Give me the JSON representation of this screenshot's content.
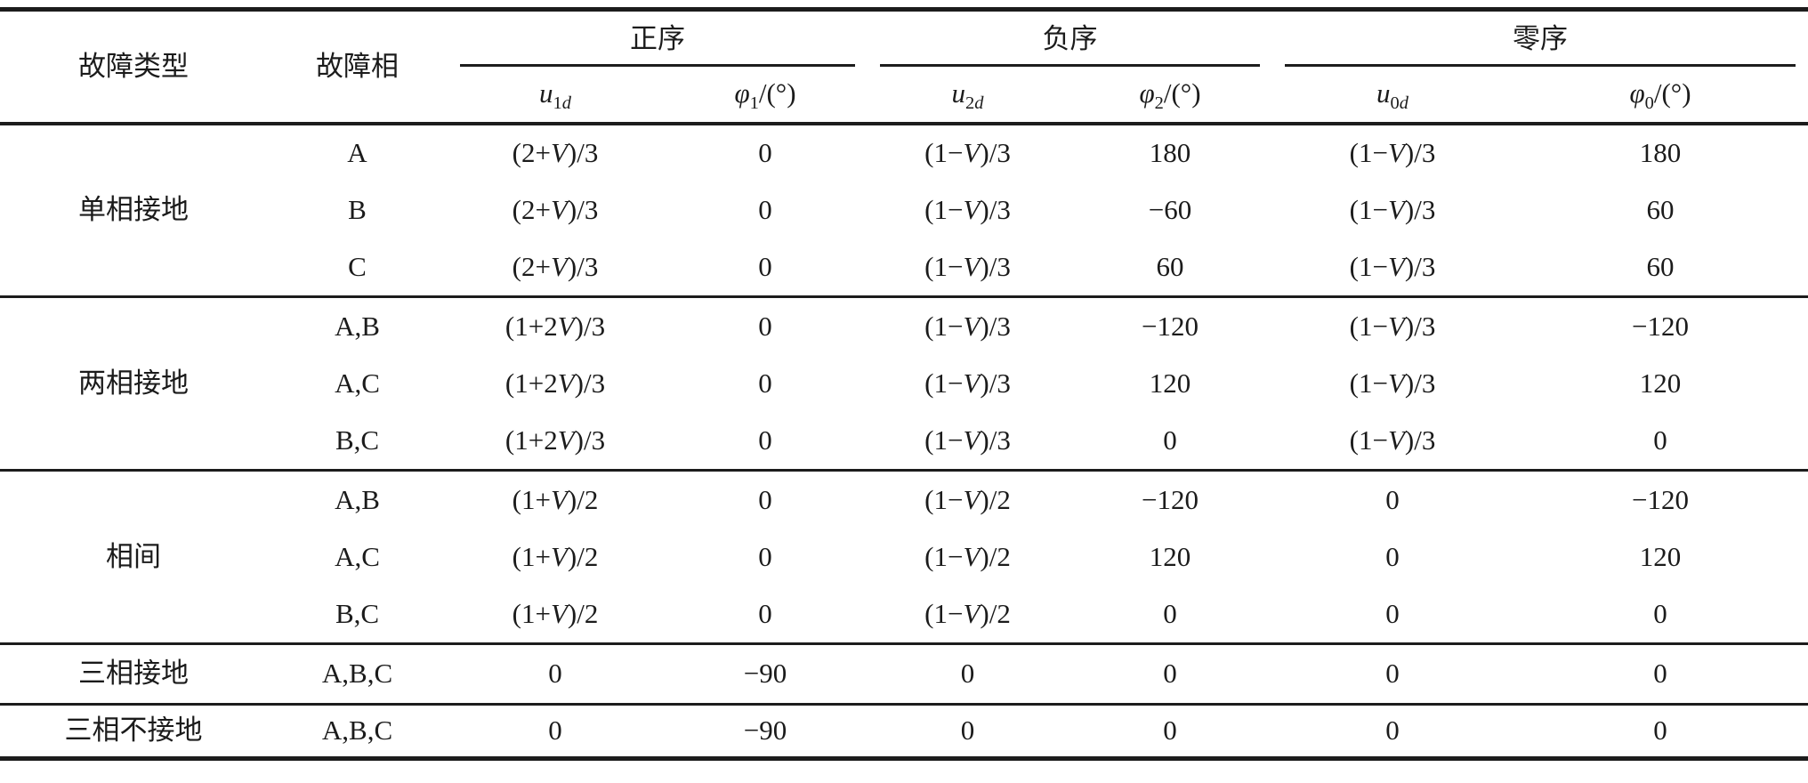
{
  "table": {
    "title_semantics": "故障类型与各序分量表",
    "col_headers": {
      "fault_type": "故障类型",
      "fault_phase": "故障相"
    },
    "seq_groups": [
      {
        "label": "正序",
        "u": {
          "base": "u",
          "sub": "1",
          "subi": "d"
        },
        "phi": {
          "base": "φ",
          "sub": "1",
          "unit": "/(°)"
        }
      },
      {
        "label": "负序",
        "u": {
          "base": "u",
          "sub": "2",
          "subi": "d"
        },
        "phi": {
          "base": "φ",
          "sub": "2",
          "unit": "/(°)"
        }
      },
      {
        "label": "零序",
        "u": {
          "base": "u",
          "sub": "0",
          "subi": "d"
        },
        "phi": {
          "base": "φ",
          "sub": "0",
          "unit": "/(°)"
        }
      }
    ],
    "groups": [
      {
        "fault_type": "单相接地",
        "rows": [
          {
            "phase": "A",
            "u1": "(2+V)/3",
            "phi1": "0",
            "u2": "(1−V)/3",
            "phi2": "180",
            "u0": "(1−V)/3",
            "phi0": "180"
          },
          {
            "phase": "B",
            "u1": "(2+V)/3",
            "phi1": "0",
            "u2": "(1−V)/3",
            "phi2": "−60",
            "u0": "(1−V)/3",
            "phi0": "60"
          },
          {
            "phase": "C",
            "u1": "(2+V)/3",
            "phi1": "0",
            "u2": "(1−V)/3",
            "phi2": "60",
            "u0": "(1−V)/3",
            "phi0": "60"
          }
        ]
      },
      {
        "fault_type": "两相接地",
        "rows": [
          {
            "phase": "A,B",
            "u1": "(1+2V)/3",
            "phi1": "0",
            "u2": "(1−V)/3",
            "phi2": "−120",
            "u0": "(1−V)/3",
            "phi0": "−120"
          },
          {
            "phase": "A,C",
            "u1": "(1+2V)/3",
            "phi1": "0",
            "u2": "(1−V)/3",
            "phi2": "120",
            "u0": "(1−V)/3",
            "phi0": "120"
          },
          {
            "phase": "B,C",
            "u1": "(1+2V)/3",
            "phi1": "0",
            "u2": "(1−V)/3",
            "phi2": "0",
            "u0": "(1−V)/3",
            "phi0": "0"
          }
        ]
      },
      {
        "fault_type": "相间",
        "rows": [
          {
            "phase": "A,B",
            "u1": "(1+V)/2",
            "phi1": "0",
            "u2": "(1−V)/2",
            "phi2": "−120",
            "u0": "0",
            "phi0": "−120"
          },
          {
            "phase": "A,C",
            "u1": "(1+V)/2",
            "phi1": "0",
            "u2": "(1−V)/2",
            "phi2": "120",
            "u0": "0",
            "phi0": "120"
          },
          {
            "phase": "B,C",
            "u1": "(1+V)/2",
            "phi1": "0",
            "u2": "(1−V)/2",
            "phi2": "0",
            "u0": "0",
            "phi0": "0"
          }
        ]
      },
      {
        "fault_type": "三相接地",
        "rows": [
          {
            "phase": "A,B,C",
            "u1": "0",
            "phi1": "−90",
            "u2": "0",
            "phi2": "0",
            "u0": "0",
            "phi0": "0"
          }
        ]
      },
      {
        "fault_type": "三相不接地",
        "rows": [
          {
            "phase": "A,B,C",
            "u1": "0",
            "phi1": "−90",
            "u2": "0",
            "phi2": "0",
            "u0": "0",
            "phi0": "0"
          }
        ]
      }
    ],
    "line_color": "#1c1c1c",
    "background_color": "#ffffff"
  }
}
